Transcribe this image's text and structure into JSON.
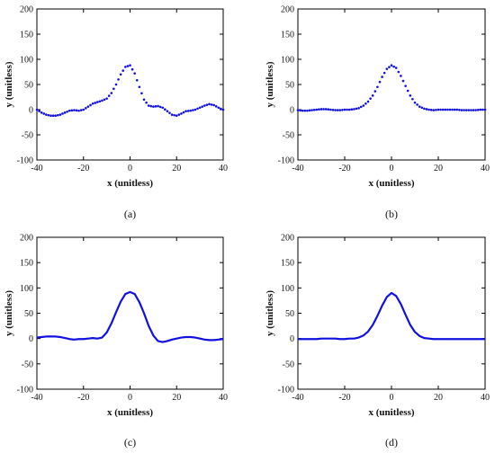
{
  "series_color": "#1010e0",
  "chart_data": [
    {
      "panel_label": "(a)",
      "type": "scatter",
      "marker": "dots",
      "xlabel": "x (unitless)",
      "ylabel": "y (unitless)",
      "xlim": [
        -40,
        40
      ],
      "ylim": [
        -100,
        200
      ],
      "xticks": [
        -40,
        -20,
        0,
        20,
        40
      ],
      "yticks": [
        -100,
        -50,
        0,
        50,
        100,
        150,
        200
      ],
      "grid": false,
      "x": [
        -40,
        -38,
        -36,
        -34,
        -32,
        -30,
        -28,
        -26,
        -24,
        -22,
        -20,
        -18,
        -16,
        -14,
        -12,
        -10,
        -8,
        -6,
        -4,
        -2,
        0,
        2,
        4,
        6,
        8,
        10,
        12,
        14,
        16,
        18,
        20,
        22,
        24,
        26,
        28,
        30,
        32,
        34,
        36,
        38,
        40
      ],
      "y": [
        0,
        -6,
        -10,
        -12,
        -12,
        -10,
        -6,
        -2,
        -1,
        -2,
        0,
        6,
        12,
        15,
        18,
        22,
        33,
        50,
        70,
        85,
        88,
        72,
        45,
        20,
        8,
        6,
        7,
        4,
        -3,
        -10,
        -12,
        -8,
        -3,
        -2,
        0,
        4,
        8,
        11,
        9,
        4,
        0
      ]
    },
    {
      "panel_label": "(b)",
      "type": "scatter",
      "marker": "dots",
      "xlabel": "x (unitless)",
      "ylabel": "y (unitless)",
      "xlim": [
        -40,
        40
      ],
      "ylim": [
        -100,
        200
      ],
      "xticks": [
        -40,
        -20,
        0,
        20,
        40
      ],
      "yticks": [
        -100,
        -50,
        0,
        50,
        100,
        150,
        200
      ],
      "grid": false,
      "x": [
        -40,
        -38,
        -36,
        -34,
        -32,
        -30,
        -28,
        -26,
        -24,
        -22,
        -20,
        -18,
        -16,
        -14,
        -12,
        -10,
        -8,
        -6,
        -4,
        -2,
        0,
        2,
        4,
        6,
        8,
        10,
        12,
        14,
        16,
        18,
        20,
        22,
        24,
        26,
        28,
        30,
        32,
        34,
        36,
        38,
        40
      ],
      "y": [
        -1,
        -2,
        -2,
        -1,
        0,
        1,
        1,
        0,
        -1,
        -1,
        0,
        0,
        1,
        3,
        8,
        16,
        28,
        45,
        65,
        81,
        88,
        83,
        67,
        47,
        28,
        14,
        6,
        2,
        0,
        -1,
        0,
        0,
        0,
        0,
        0,
        -1,
        -1,
        -1,
        -1,
        0,
        0
      ]
    },
    {
      "panel_label": "(c)",
      "type": "line",
      "xlabel": "x (unitless)",
      "ylabel": "y (unitless)",
      "xlim": [
        -40,
        40
      ],
      "ylim": [
        -100,
        200
      ],
      "xticks": [
        -40,
        -20,
        0,
        20,
        40
      ],
      "yticks": [
        -100,
        -50,
        0,
        50,
        100,
        150,
        200
      ],
      "grid": false,
      "x": [
        -40,
        -38,
        -36,
        -34,
        -32,
        -30,
        -28,
        -26,
        -24,
        -22,
        -20,
        -18,
        -16,
        -14,
        -12,
        -10,
        -8,
        -6,
        -4,
        -2,
        0,
        2,
        4,
        6,
        8,
        10,
        12,
        14,
        16,
        18,
        20,
        22,
        24,
        26,
        28,
        30,
        32,
        34,
        36,
        38,
        40
      ],
      "y": [
        2,
        3,
        4,
        4,
        4,
        3,
        1,
        -1,
        -2,
        -1,
        -1,
        0,
        1,
        0,
        2,
        12,
        30,
        52,
        73,
        88,
        92,
        88,
        72,
        50,
        25,
        6,
        -5,
        -7,
        -5,
        -2,
        0,
        2,
        3,
        3,
        2,
        0,
        -2,
        -3,
        -3,
        -2,
        -1
      ]
    },
    {
      "panel_label": "(d)",
      "type": "line",
      "xlabel": "x (unitless)",
      "ylabel": "y (unitless)",
      "xlim": [
        -40,
        40
      ],
      "ylim": [
        -100,
        200
      ],
      "xticks": [
        -40,
        -20,
        0,
        20,
        40
      ],
      "yticks": [
        -100,
        -50,
        0,
        50,
        100,
        150,
        200
      ],
      "grid": false,
      "x": [
        -40,
        -38,
        -36,
        -34,
        -32,
        -30,
        -28,
        -26,
        -24,
        -22,
        -20,
        -18,
        -16,
        -14,
        -12,
        -10,
        -8,
        -6,
        -4,
        -2,
        0,
        2,
        4,
        6,
        8,
        10,
        12,
        14,
        16,
        18,
        20,
        22,
        24,
        26,
        28,
        30,
        32,
        34,
        36,
        38,
        40
      ],
      "y": [
        -1,
        -1,
        -1,
        -1,
        -1,
        0,
        0,
        0,
        0,
        -1,
        -1,
        0,
        0,
        2,
        6,
        14,
        27,
        45,
        65,
        82,
        90,
        84,
        68,
        47,
        27,
        13,
        5,
        1,
        0,
        -1,
        -1,
        -1,
        -1,
        -1,
        -1,
        -1,
        -1,
        -1,
        -1,
        -1,
        -1
      ]
    }
  ]
}
